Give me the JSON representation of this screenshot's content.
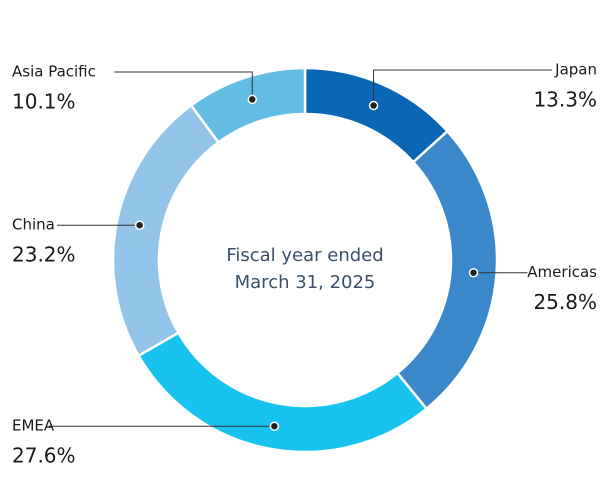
{
  "chart_data": {
    "type": "donut",
    "center_label": [
      "Fiscal year ended",
      "March 31, 2025"
    ],
    "categories": [
      "Japan",
      "Americas",
      "EMEA",
      "China",
      "Asia Pacific"
    ],
    "values": [
      13.3,
      25.8,
      27.6,
      23.2,
      10.1
    ],
    "value_labels": [
      "13.3%",
      "25.8%",
      "27.6%",
      "23.2%",
      "10.1%"
    ],
    "colors": [
      "#0a67b5",
      "#3a87c9",
      "#19c3ef",
      "#93c5ea",
      "#63bde3"
    ]
  }
}
